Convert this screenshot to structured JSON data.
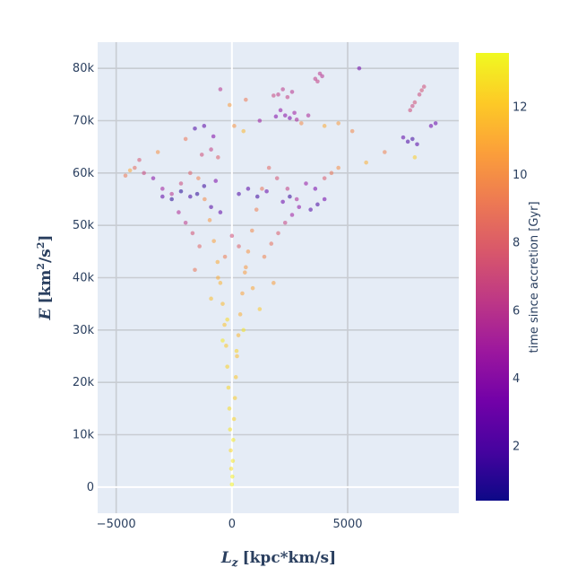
{
  "chart_data": {
    "type": "scatter",
    "title": "",
    "xlabel": {
      "symbol": "L",
      "sub": "z",
      "units": "[kpc*km/s]"
    },
    "ylabel": {
      "symbol": "E",
      "units_prefix": "[km",
      "sup1": "2",
      "mid": "/s",
      "sup2": "2",
      "units_suffix": "]"
    },
    "xlim": [
      -5800,
      9800
    ],
    "ylim": [
      -5000,
      85000
    ],
    "x_ticks": [
      {
        "value": -5000,
        "label": "−5000"
      },
      {
        "value": 0,
        "label": "0"
      },
      {
        "value": 5000,
        "label": "5000"
      }
    ],
    "y_ticks": [
      {
        "value": 0,
        "label": "0"
      },
      {
        "value": 10000,
        "label": "10k"
      },
      {
        "value": 20000,
        "label": "20k"
      },
      {
        "value": 30000,
        "label": "30k"
      },
      {
        "value": 40000,
        "label": "40k"
      },
      {
        "value": 50000,
        "label": "50k"
      },
      {
        "value": 60000,
        "label": "60k"
      },
      {
        "value": 70000,
        "label": "70k"
      },
      {
        "value": 80000,
        "label": "80k"
      }
    ],
    "grid": true,
    "colorbar": {
      "title": "time since accretion [Gyr]",
      "range": [
        0.4,
        13.6
      ],
      "ticks": [
        {
          "value": 2,
          "label": "2"
        },
        {
          "value": 4,
          "label": "4"
        },
        {
          "value": 6,
          "label": "6"
        },
        {
          "value": 8,
          "label": "8"
        },
        {
          "value": 10,
          "label": "10"
        },
        {
          "value": 12,
          "label": "12"
        }
      ],
      "colorscale": [
        "#0d0887",
        "#46039f",
        "#7201a8",
        "#9c179e",
        "#bd3786",
        "#d8576b",
        "#ed7953",
        "#fb9f3a",
        "#fdca26",
        "#f0f921"
      ]
    },
    "marker_opacity": 0.55,
    "points": [
      [
        0,
        500,
        13.4
      ],
      [
        20,
        2000,
        13.2
      ],
      [
        -30,
        3500,
        12.8
      ],
      [
        40,
        5000,
        13.0
      ],
      [
        -50,
        7000,
        12.6
      ],
      [
        60,
        9000,
        13.1
      ],
      [
        -80,
        11000,
        12.9
      ],
      [
        90,
        13000,
        12.4
      ],
      [
        -110,
        15000,
        12.7
      ],
      [
        130,
        17000,
        12.2
      ],
      [
        -150,
        19000,
        12.5
      ],
      [
        170,
        21000,
        12.0
      ],
      [
        -200,
        23000,
        12.3
      ],
      [
        220,
        25000,
        11.8
      ],
      [
        -250,
        27000,
        12.1
      ],
      [
        280,
        29000,
        11.5
      ],
      [
        -320,
        31000,
        11.9
      ],
      [
        360,
        33000,
        11.2
      ],
      [
        -400,
        35000,
        11.6
      ],
      [
        450,
        37000,
        10.8
      ],
      [
        -500,
        39000,
        11.3
      ],
      [
        560,
        41000,
        10.5
      ],
      [
        -620,
        43000,
        11.0
      ],
      [
        700,
        45000,
        10.2
      ],
      [
        -780,
        47000,
        10.7
      ],
      [
        870,
        49000,
        9.8
      ],
      [
        -960,
        51000,
        10.3
      ],
      [
        1060,
        53000,
        9.4
      ],
      [
        -1180,
        55000,
        9.9
      ],
      [
        1300,
        57000,
        8.9
      ],
      [
        -1450,
        59000,
        9.5
      ],
      [
        1600,
        61000,
        8.4
      ],
      [
        -1800,
        60000,
        8.0
      ],
      [
        1950,
        59000,
        7.5
      ],
      [
        -2200,
        58000,
        7.0
      ],
      [
        2400,
        57000,
        6.5
      ],
      [
        -2600,
        56000,
        6.0
      ],
      [
        2800,
        55000,
        5.5
      ],
      [
        -3000,
        57000,
        5.0
      ],
      [
        3200,
        58000,
        4.5
      ],
      [
        -3400,
        59000,
        4.0
      ],
      [
        3600,
        57000,
        3.5
      ],
      [
        -3800,
        60000,
        6.8
      ],
      [
        4000,
        59000,
        7.8
      ],
      [
        4300,
        60000,
        9.0
      ],
      [
        4600,
        61000,
        10.0
      ],
      [
        -4200,
        61000,
        8.6
      ],
      [
        -4600,
        59500,
        9.2
      ],
      [
        -1500,
        56000,
        1.2
      ],
      [
        -1200,
        57500,
        1.5
      ],
      [
        -1800,
        55500,
        1.8
      ],
      [
        -900,
        53500,
        2.2
      ],
      [
        -500,
        52500,
        2.6
      ],
      [
        300,
        56000,
        2.0
      ],
      [
        700,
        57000,
        2.4
      ],
      [
        1100,
        55500,
        1.6
      ],
      [
        1500,
        56500,
        2.8
      ],
      [
        2200,
        54500,
        3.0
      ],
      [
        2500,
        55500,
        1.4
      ],
      [
        3400,
        53000,
        2.2
      ],
      [
        3700,
        54000,
        1.9
      ],
      [
        4000,
        55000,
        3.3
      ],
      [
        -2200,
        56500,
        0.9
      ],
      [
        -2600,
        55000,
        1.1
      ],
      [
        -3000,
        55500,
        2.6
      ],
      [
        -700,
        58500,
        3.6
      ],
      [
        0,
        48000,
        7.2
      ],
      [
        300,
        46000,
        8.1
      ],
      [
        -300,
        44000,
        9.3
      ],
      [
        600,
        42000,
        10.4
      ],
      [
        -600,
        40000,
        11.1
      ],
      [
        900,
        38000,
        10.9
      ],
      [
        -900,
        36000,
        11.7
      ],
      [
        1200,
        34000,
        12.0
      ],
      [
        -200,
        32000,
        12.6
      ],
      [
        500,
        30000,
        12.9
      ],
      [
        -400,
        28000,
        13.1
      ],
      [
        200,
        26000,
        12.4
      ],
      [
        1400,
        44000,
        9.6
      ],
      [
        1700,
        46500,
        8.8
      ],
      [
        2000,
        48500,
        7.9
      ],
      [
        2300,
        50500,
        6.7
      ],
      [
        -1400,
        46000,
        8.3
      ],
      [
        -1700,
        48500,
        7.4
      ],
      [
        -2000,
        50500,
        6.2
      ],
      [
        -2300,
        52500,
        5.6
      ],
      [
        2600,
        52000,
        4.9
      ],
      [
        2900,
        53500,
        4.2
      ],
      [
        1800,
        39000,
        10.6
      ],
      [
        -1600,
        41500,
        9.0
      ],
      [
        2100,
        72000,
        4.4
      ],
      [
        2300,
        71000,
        4.0
      ],
      [
        2500,
        70500,
        3.6
      ],
      [
        2700,
        71500,
        4.8
      ],
      [
        1900,
        70800,
        3.8
      ],
      [
        2800,
        70200,
        5.2
      ],
      [
        2000,
        75000,
        6.4
      ],
      [
        2200,
        76000,
        6.2
      ],
      [
        2400,
        74500,
        6.6
      ],
      [
        2600,
        75500,
        6.0
      ],
      [
        1800,
        74800,
        6.8
      ],
      [
        3600,
        78000,
        6.3
      ],
      [
        3800,
        79000,
        6.1
      ],
      [
        3700,
        77500,
        6.5
      ],
      [
        3900,
        78500,
        5.9
      ],
      [
        5500,
        80000,
        3.2
      ],
      [
        7700,
        72000,
        7.1
      ],
      [
        7900,
        73500,
        7.3
      ],
      [
        8100,
        75000,
        7.0
      ],
      [
        8300,
        76500,
        7.2
      ],
      [
        7800,
        72800,
        6.9
      ],
      [
        8200,
        75800,
        7.4
      ],
      [
        7600,
        66000,
        2.0
      ],
      [
        7800,
        66500,
        1.7
      ],
      [
        8000,
        65500,
        2.3
      ],
      [
        7400,
        66800,
        2.6
      ],
      [
        8600,
        69000,
        3.1
      ],
      [
        8800,
        69500,
        2.9
      ],
      [
        7900,
        63000,
        12.2
      ],
      [
        6600,
        64000,
        9.5
      ],
      [
        5800,
        62000,
        11.2
      ],
      [
        5200,
        68000,
        9.8
      ],
      [
        4600,
        69500,
        10.5
      ],
      [
        4000,
        69000,
        11.0
      ],
      [
        -600,
        63000,
        8.0
      ],
      [
        -900,
        64500,
        6.5
      ],
      [
        -1300,
        63500,
        7.2
      ],
      [
        -1600,
        68500,
        2.0
      ],
      [
        -1200,
        69000,
        2.5
      ],
      [
        -800,
        67000,
        3.8
      ],
      [
        100,
        69000,
        10.2
      ],
      [
        500,
        68000,
        11.5
      ],
      [
        -2000,
        66500,
        9.1
      ],
      [
        -3200,
        64000,
        10.1
      ],
      [
        -4000,
        62500,
        7.6
      ],
      [
        -4400,
        60500,
        10.9
      ],
      [
        -100,
        73000,
        10.5
      ],
      [
        600,
        74000,
        9.2
      ],
      [
        -500,
        76000,
        6.0
      ],
      [
        1200,
        70000,
        4.7
      ],
      [
        3000,
        69500,
        9.9
      ],
      [
        3300,
        71000,
        5.4
      ]
    ]
  }
}
